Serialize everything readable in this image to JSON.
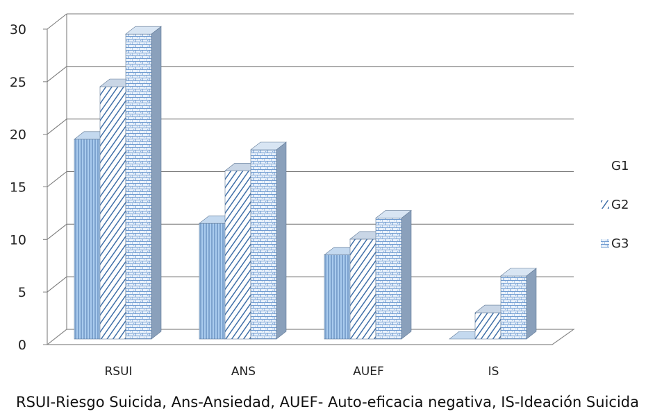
{
  "chart_data": {
    "type": "bar",
    "categories": [
      "RSUI",
      "ANS",
      "AUEF",
      "IS"
    ],
    "series": [
      {
        "name": "G1",
        "values": [
          19,
          11,
          8,
          0
        ]
      },
      {
        "name": "G2",
        "values": [
          24,
          16,
          9.5,
          2.5
        ]
      },
      {
        "name": "G3",
        "values": [
          29,
          18,
          11.5,
          6
        ]
      }
    ],
    "ylim": [
      0,
      30
    ],
    "yticks": [
      0,
      5,
      10,
      15,
      20,
      25,
      30
    ],
    "grid": true,
    "legend": "right",
    "colors": {
      "G1": "#9dc3e6",
      "G2": "#4a7fb8",
      "G3": "#7ba7d9"
    }
  },
  "caption": "RSUI-Riesgo Suicida, Ans-Ansiedad, AUEF- Auto-eficacia negativa, IS-Ideación Suicida"
}
